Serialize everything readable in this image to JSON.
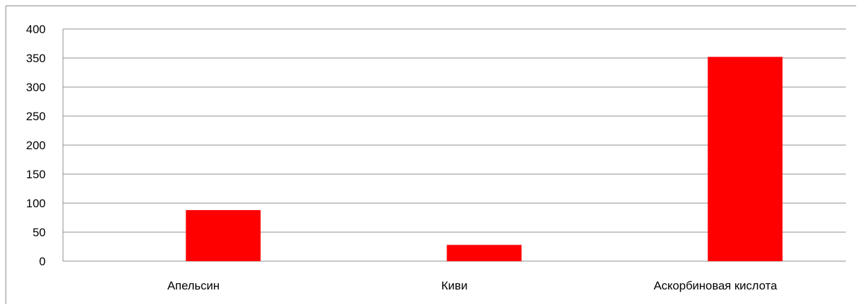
{
  "chart_data": {
    "type": "bar",
    "title": "",
    "xlabel": "",
    "ylabel": "",
    "categories": [
      "Апельсин",
      "Киви",
      "Аскорбиновая кислота"
    ],
    "values": [
      88,
      28,
      352
    ],
    "ylim": [
      0,
      400
    ],
    "yticks": [
      "0",
      "50",
      "100",
      "150",
      "200",
      "250",
      "300",
      "350",
      "400"
    ],
    "grid": true,
    "legend": "none",
    "bar_color": "#ff0000",
    "grid_color": "#8c8c8c",
    "axis_color": "#8c8c8c"
  }
}
